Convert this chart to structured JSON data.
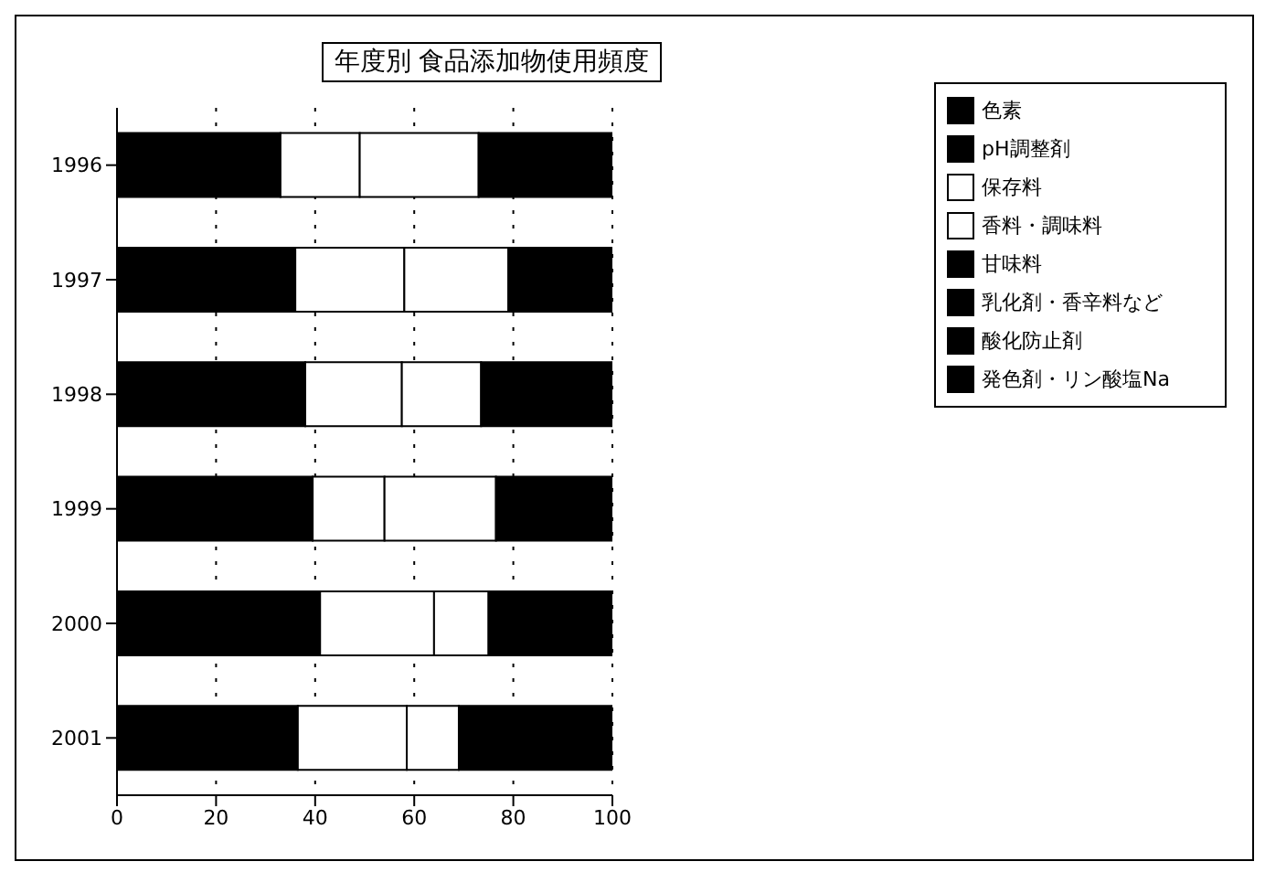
{
  "chart_data": {
    "type": "bar",
    "title": "年度別 食品添加物使用頻度",
    "orientation": "horizontal",
    "stacked": true,
    "categories": [
      "1996",
      "1997",
      "1998",
      "1999",
      "2000",
      "2001"
    ],
    "series": [
      {
        "name": "色素",
        "color": "#000000",
        "values": [
          33,
          36,
          38,
          39.5,
          41,
          36.5
        ]
      },
      {
        "name": "pH調整剤",
        "color": "#000000",
        "values": [
          null,
          null,
          null,
          null,
          null,
          null
        ]
      },
      {
        "name": "保存料",
        "color": "#ffffff",
        "values": [
          16,
          22,
          19.5,
          14.5,
          23,
          22
        ]
      },
      {
        "name": "香料・調味料",
        "color": "#ffffff",
        "values": [
          24,
          21,
          16,
          22.5,
          11,
          10.5
        ]
      },
      {
        "name": "甘味料",
        "color": "#000000",
        "values": [
          27,
          21,
          26.5,
          23.5,
          25,
          31
        ]
      },
      {
        "name": "乳化剤・香辛料など",
        "color": "#000000",
        "values": [
          null,
          null,
          null,
          null,
          null,
          null
        ]
      },
      {
        "name": "酸化防止剤",
        "color": "#000000",
        "values": [
          null,
          null,
          null,
          null,
          null,
          null
        ]
      },
      {
        "name": "発色剤・リン酸塩Na",
        "color": "#000000",
        "values": [
          null,
          null,
          null,
          null,
          null,
          null
        ]
      }
    ],
    "xlim": [
      0,
      100
    ],
    "xticks": [
      0,
      20,
      40,
      60,
      80,
      100
    ],
    "grid": "x",
    "legend": "top right"
  }
}
